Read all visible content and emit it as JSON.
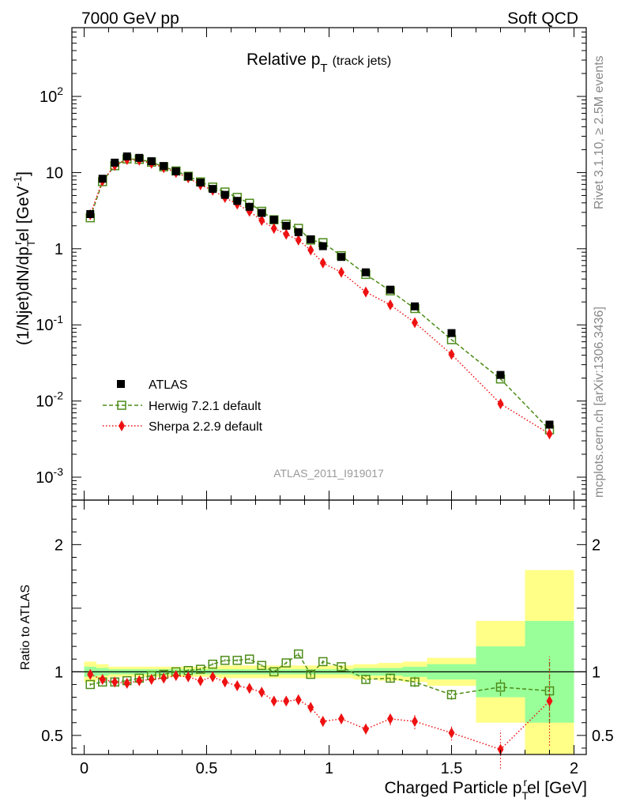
{
  "header": {
    "left": "7000 GeV pp",
    "right": "Soft QCD"
  },
  "side_labels": {
    "rivet": "Rivet 3.1.10, ≥ 2.5M events",
    "mcplots": "mcplots.cern.ch [arXiv:1306.3436]"
  },
  "chart_data": [
    {
      "type": "scatter",
      "panel": "main",
      "title_main": "Relative p",
      "title_sub": "T",
      "title_extra": "(track jets)",
      "analysis_label": "ATLAS_2011_I919017",
      "ylabel": "(1/Njet)dN/dpᵀʳel [GeV⁻¹]",
      "ylabel_parts": {
        "a": "(1/Njet)dN/dp",
        "sub": "T",
        "sup": "r",
        "b": "el [GeV",
        "sup2": "-1",
        "c": "]"
      },
      "yscale": "log",
      "xlim": [
        -0.05,
        2.05
      ],
      "ylim": [
        0.0005,
        800
      ],
      "y_tick_labels": [
        "10^-3",
        "10^-2",
        "10^-1",
        "1",
        "10",
        "10^2"
      ],
      "x": [
        0.025,
        0.075,
        0.125,
        0.175,
        0.225,
        0.275,
        0.325,
        0.375,
        0.425,
        0.475,
        0.525,
        0.575,
        0.625,
        0.675,
        0.725,
        0.775,
        0.825,
        0.875,
        0.925,
        0.975,
        1.05,
        1.15,
        1.25,
        1.35,
        1.5,
        1.7,
        1.9
      ],
      "legend": "bottom-left",
      "series": [
        {
          "name": "ATLAS",
          "color": "#000000",
          "marker": "square-filled",
          "values": [
            2.85,
            8.3,
            13.5,
            16.3,
            15.6,
            14.1,
            12.2,
            10.4,
            8.9,
            7.4,
            6.1,
            5.1,
            4.25,
            3.55,
            2.95,
            2.4,
            2.0,
            1.65,
            1.33,
            1.08,
            0.78,
            0.49,
            0.29,
            0.175,
            0.078,
            0.022,
            0.0049
          ]
        },
        {
          "name": "Herwig 7.2.1 default",
          "color": "#4d8c19",
          "marker": "square-open",
          "line": "dashed",
          "values": [
            2.55,
            7.6,
            12.3,
            15.1,
            14.9,
            13.7,
            11.9,
            10.5,
            8.95,
            7.55,
            6.45,
            5.55,
            4.72,
            3.95,
            3.1,
            2.4,
            2.1,
            1.85,
            1.3,
            1.2,
            0.81,
            0.46,
            0.28,
            0.164,
            0.064,
            0.0195,
            0.0042
          ]
        },
        {
          "name": "Sherpa 2.2.9 default",
          "color": "#ee1111",
          "marker": "diamond",
          "line": "dotted",
          "values": [
            2.8,
            7.8,
            12.4,
            14.8,
            14.5,
            13.2,
            11.6,
            10.0,
            8.55,
            6.9,
            5.85,
            4.7,
            3.85,
            3.1,
            2.35,
            1.85,
            1.55,
            1.3,
            0.96,
            0.65,
            0.49,
            0.27,
            0.183,
            0.107,
            0.041,
            0.0092,
            0.0037
          ]
        }
      ]
    },
    {
      "type": "scatter",
      "panel": "ratio",
      "ylabel": "Ratio to ATLAS",
      "xlabel": "Charged Particle p",
      "xlabel_sub": "T",
      "xlabel_sup": "r",
      "xlabel_b": "el [GeV]",
      "xlim": [
        -0.05,
        2.05
      ],
      "ylim": [
        0.35,
        2.35
      ],
      "x_tick_labels": [
        "0",
        "0.5",
        "1",
        "1.5",
        "2"
      ],
      "y_tick_labels": [
        "0.5",
        "1",
        "2"
      ],
      "x": [
        0.025,
        0.075,
        0.125,
        0.175,
        0.225,
        0.275,
        0.325,
        0.375,
        0.425,
        0.475,
        0.525,
        0.575,
        0.625,
        0.675,
        0.725,
        0.775,
        0.825,
        0.875,
        0.925,
        0.975,
        1.05,
        1.15,
        1.25,
        1.35,
        1.5,
        1.7,
        1.9
      ],
      "bin_edges": [
        0,
        0.05,
        0.1,
        0.15,
        0.2,
        0.25,
        0.3,
        0.35,
        0.4,
        0.45,
        0.5,
        0.55,
        0.6,
        0.65,
        0.7,
        0.75,
        0.8,
        0.85,
        0.9,
        0.95,
        1.0,
        1.1,
        1.2,
        1.3,
        1.4,
        1.6,
        1.8,
        2.0
      ],
      "band_stat": [
        0.04,
        0.03,
        0.02,
        0.02,
        0.02,
        0.02,
        0.02,
        0.02,
        0.02,
        0.02,
        0.02,
        0.02,
        0.02,
        0.02,
        0.02,
        0.02,
        0.02,
        0.02,
        0.02,
        0.02,
        0.02,
        0.03,
        0.03,
        0.04,
        0.06,
        0.2,
        0.4
      ],
      "band_total": [
        0.08,
        0.06,
        0.04,
        0.04,
        0.04,
        0.04,
        0.04,
        0.04,
        0.04,
        0.04,
        0.04,
        0.05,
        0.05,
        0.05,
        0.05,
        0.05,
        0.05,
        0.05,
        0.05,
        0.05,
        0.05,
        0.06,
        0.07,
        0.08,
        0.11,
        0.4,
        0.8
      ],
      "series": [
        {
          "name": "Herwig 7.2.1 default",
          "color": "#4d8c19",
          "marker": "square-open",
          "line": "dashed",
          "values": [
            0.9,
            0.92,
            0.92,
            0.93,
            0.95,
            0.97,
            0.98,
            1.0,
            1.01,
            1.02,
            1.06,
            1.09,
            1.09,
            1.1,
            1.05,
            1.0,
            1.07,
            1.14,
            0.98,
            1.08,
            1.04,
            0.94,
            0.95,
            0.92,
            0.82,
            0.88,
            0.85
          ],
          "err": [
            0.01,
            0.01,
            0.01,
            0.01,
            0.01,
            0.01,
            0.01,
            0.01,
            0.01,
            0.01,
            0.01,
            0.01,
            0.01,
            0.01,
            0.01,
            0.01,
            0.01,
            0.02,
            0.02,
            0.02,
            0.02,
            0.03,
            0.03,
            0.04,
            0.04,
            0.07,
            0.25
          ]
        },
        {
          "name": "Sherpa 2.2.9 default",
          "color": "#ee1111",
          "marker": "diamond",
          "line": "dotted",
          "values": [
            0.98,
            0.94,
            0.92,
            0.91,
            0.93,
            0.94,
            0.95,
            0.97,
            0.96,
            0.93,
            0.96,
            0.92,
            0.89,
            0.87,
            0.84,
            0.77,
            0.77,
            0.78,
            0.72,
            0.61,
            0.63,
            0.55,
            0.63,
            0.61,
            0.52,
            0.39,
            0.77
          ],
          "err": [
            0.01,
            0.01,
            0.01,
            0.01,
            0.01,
            0.01,
            0.01,
            0.01,
            0.01,
            0.01,
            0.01,
            0.02,
            0.02,
            0.02,
            0.02,
            0.03,
            0.03,
            0.03,
            0.04,
            0.04,
            0.04,
            0.04,
            0.05,
            0.06,
            0.06,
            0.15,
            0.35
          ]
        }
      ]
    }
  ]
}
